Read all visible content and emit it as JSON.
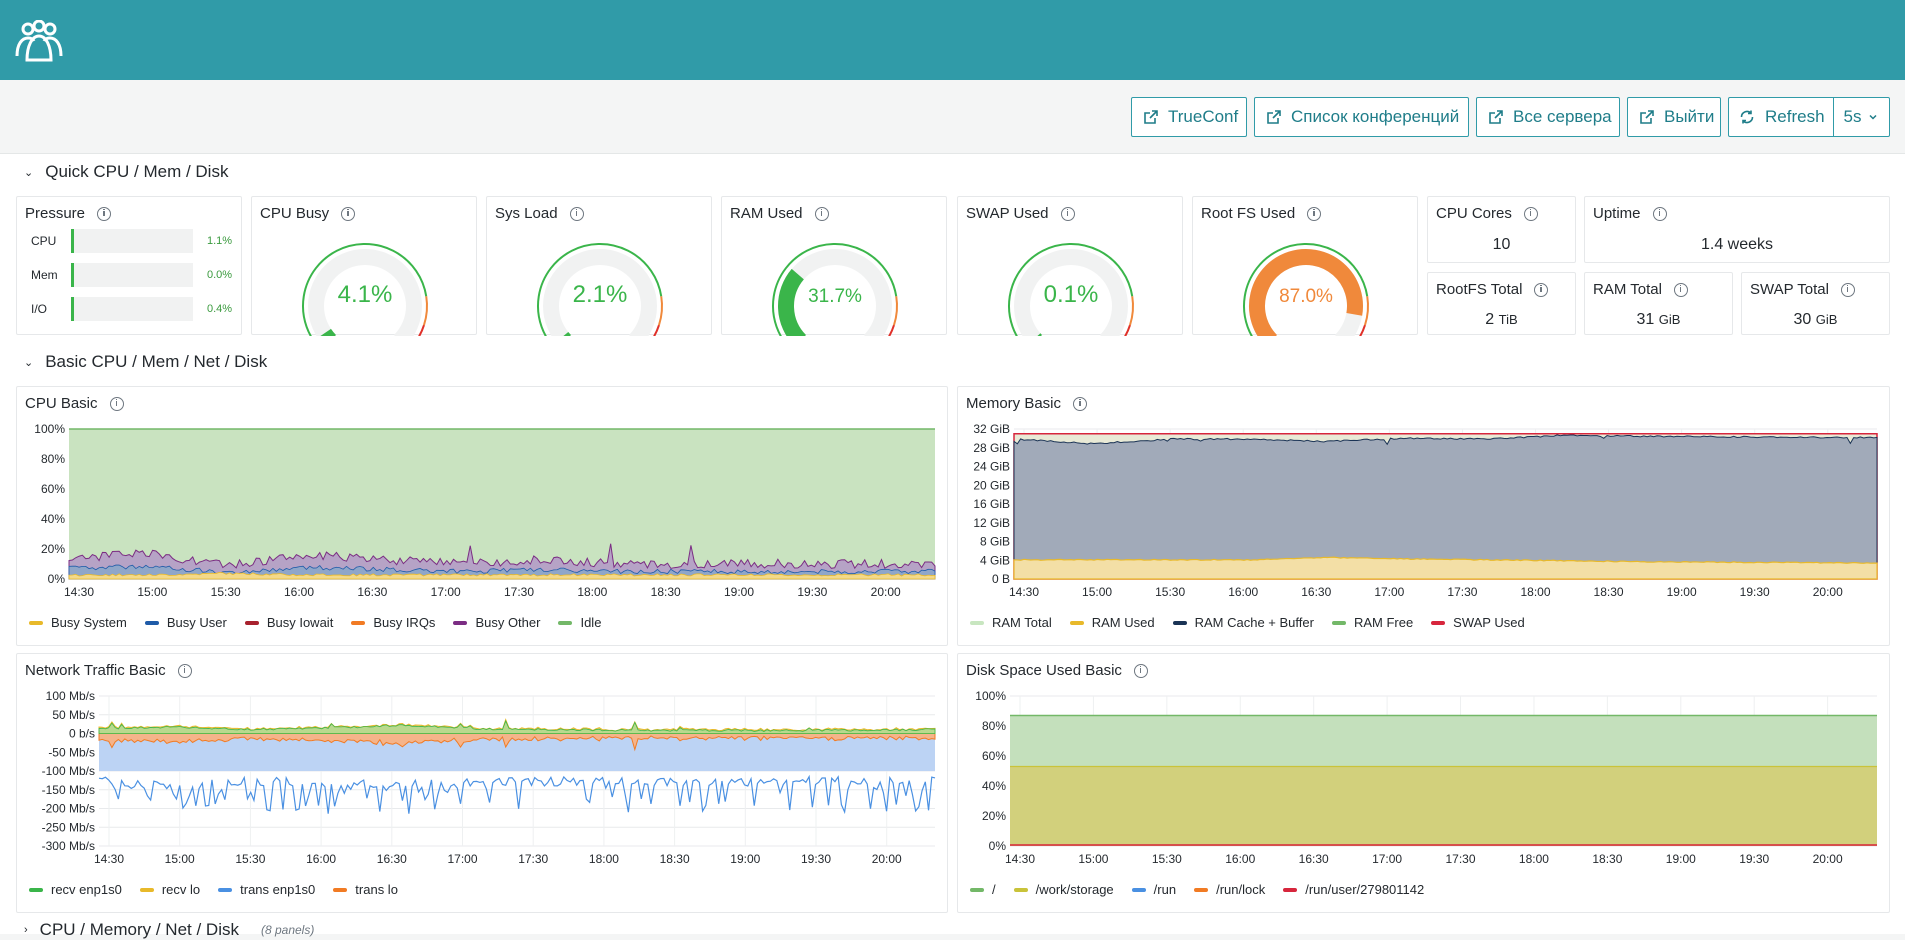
{
  "header": {
    "logo_icon": "users-group-icon"
  },
  "nav": {
    "buttons": [
      {
        "label": "TrueConf",
        "icon": "external-link-icon"
      },
      {
        "label": "Список конференций",
        "icon": "external-link-icon"
      },
      {
        "label": "Все сервера",
        "icon": "external-link-icon"
      },
      {
        "label": "Выйти",
        "icon": "external-link-icon"
      }
    ],
    "refresh_label": "Refresh",
    "refresh_interval": "5s"
  },
  "sections": {
    "quick": "Quick CPU / Mem / Disk",
    "basic": "Basic CPU / Mem / Net / Disk",
    "more": "CPU / Memory / Net / Disk",
    "more_count": "(8 panels)"
  },
  "pressure": {
    "title": "Pressure",
    "rows": [
      {
        "label": "CPU",
        "value": "1.1%",
        "fraction": 0.011
      },
      {
        "label": "Mem",
        "value": "0.0%",
        "fraction": 0.0
      },
      {
        "label": "I/O",
        "value": "0.4%",
        "fraction": 0.004
      }
    ]
  },
  "gauges": [
    {
      "title": "CPU Busy",
      "value": "4.1%",
      "percent": 4.1,
      "color": "#3ab54a"
    },
    {
      "title": "Sys Load",
      "value": "2.1%",
      "percent": 2.1,
      "color": "#3ab54a"
    },
    {
      "title": "RAM Used",
      "value": "31.7%",
      "percent": 31.7,
      "color": "#3ab54a"
    },
    {
      "title": "SWAP Used",
      "value": "0.1%",
      "percent": 0.1,
      "color": "#3ab54a"
    },
    {
      "title": "Root FS Used",
      "value": "87.0%",
      "percent": 87.0,
      "color": "#f0893b"
    }
  ],
  "stats": {
    "cpu_cores": {
      "title": "CPU Cores",
      "value": "10",
      "unit": ""
    },
    "uptime": {
      "title": "Uptime",
      "value": "1.4 weeks",
      "unit": ""
    },
    "rootfs_total": {
      "title": "RootFS Total",
      "value": "2",
      "unit": "TiB"
    },
    "ram_total": {
      "title": "RAM Total",
      "value": "31",
      "unit": "GiB"
    },
    "swap_total": {
      "title": "SWAP Total",
      "value": "30",
      "unit": "GiB"
    }
  },
  "chart_data": [
    {
      "type": "area",
      "title": "CPU Basic",
      "x": [
        "14:30",
        "15:00",
        "15:30",
        "16:00",
        "16:30",
        "17:00",
        "17:30",
        "18:00",
        "18:30",
        "19:00",
        "19:30",
        "20:00"
      ],
      "yticks": [
        "0%",
        "20%",
        "40%",
        "60%",
        "80%",
        "100%"
      ],
      "ylim": [
        0,
        100
      ],
      "series": [
        {
          "name": "Busy System",
          "color": "#e8b92a",
          "values": [
            2,
            2,
            3,
            2,
            2,
            2,
            2,
            2,
            2,
            2,
            2,
            2
          ]
        },
        {
          "name": "Busy User",
          "color": "#1f5ba8",
          "values": [
            8,
            10,
            4,
            9,
            7,
            5,
            7,
            5,
            5,
            5,
            5,
            5
          ]
        },
        {
          "name": "Busy Iowait",
          "color": "#a8222e",
          "values": [
            0,
            0,
            0,
            0,
            0,
            0,
            0,
            0,
            0,
            0,
            0,
            0
          ]
        },
        {
          "name": "Busy IRQs",
          "color": "#f17b24",
          "values": [
            0,
            0,
            0,
            0,
            0,
            0,
            0,
            0,
            0,
            0,
            0,
            0
          ]
        },
        {
          "name": "Busy Other",
          "color": "#7b2d83",
          "values": [
            3,
            4,
            2,
            4,
            3,
            2,
            3,
            2,
            2,
            2,
            2,
            2
          ]
        },
        {
          "name": "Idle",
          "color": "#73b868",
          "values": [
            87,
            84,
            91,
            85,
            88,
            91,
            88,
            91,
            91,
            91,
            91,
            91
          ]
        }
      ]
    },
    {
      "type": "area",
      "title": "Memory Basic",
      "x": [
        "14:30",
        "15:00",
        "15:30",
        "16:00",
        "16:30",
        "17:00",
        "17:30",
        "18:00",
        "18:30",
        "19:00",
        "19:30",
        "20:00"
      ],
      "yticks": [
        "0 B",
        "4 GiB",
        "8 GiB",
        "12 GiB",
        "16 GiB",
        "20 GiB",
        "24 GiB",
        "28 GiB",
        "32 GiB"
      ],
      "ylim": [
        0,
        32
      ],
      "series": [
        {
          "name": "RAM Total",
          "color": "#c8e6c0",
          "values": [
            31,
            31,
            31,
            31,
            31,
            31,
            31,
            31,
            31,
            31,
            31,
            31
          ]
        },
        {
          "name": "RAM Used",
          "color": "#e8b92a",
          "values": [
            4,
            4,
            4,
            4,
            4.5,
            4.2,
            4,
            3.8,
            3.6,
            3.5,
            3.4,
            3.3
          ]
        },
        {
          "name": "RAM Cache + Buffer",
          "color": "#1a3355",
          "values": [
            26,
            25,
            26,
            26,
            25,
            26,
            26,
            27,
            27,
            27,
            27,
            27
          ]
        },
        {
          "name": "RAM Free",
          "color": "#73b868",
          "values": [
            1,
            2,
            1,
            1,
            1.5,
            0.8,
            1,
            0.2,
            0.4,
            0.5,
            0.6,
            0.7
          ]
        },
        {
          "name": "SWAP Used",
          "color": "#d7263d",
          "values": [
            0,
            0,
            0,
            0,
            0,
            0,
            0,
            0,
            0,
            0,
            0,
            0
          ]
        }
      ]
    },
    {
      "type": "area",
      "title": "Network Traffic Basic",
      "x": [
        "14:30",
        "15:00",
        "15:30",
        "16:00",
        "16:30",
        "17:00",
        "17:30",
        "18:00",
        "18:30",
        "19:00",
        "19:30",
        "20:00"
      ],
      "yticks": [
        "-300 Mb/s",
        "-250 Mb/s",
        "-200 Mb/s",
        "-150 Mb/s",
        "-100 Mb/s",
        "-50 Mb/s",
        "0 b/s",
        "50 Mb/s",
        "100 Mb/s"
      ],
      "ylim": [
        -300,
        100
      ],
      "series": [
        {
          "name": "recv enp1s0",
          "color": "#3ab54a",
          "values": [
            10,
            15,
            8,
            12,
            20,
            10,
            8,
            6,
            6,
            5,
            6,
            8
          ]
        },
        {
          "name": "recv lo",
          "color": "#e8b92a",
          "values": [
            12,
            18,
            10,
            14,
            22,
            12,
            10,
            8,
            8,
            7,
            8,
            10
          ]
        },
        {
          "name": "trans enp1s0",
          "color": "#4a90e2",
          "values": [
            -140,
            -150,
            -140,
            -145,
            -150,
            -140,
            -140,
            -140,
            -140,
            -140,
            -140,
            -140
          ]
        },
        {
          "name": "trans lo",
          "color": "#f17b24",
          "values": [
            -12,
            -18,
            -10,
            -14,
            -22,
            -12,
            -10,
            -8,
            -8,
            -7,
            -8,
            -10
          ]
        }
      ]
    },
    {
      "type": "area",
      "title": "Disk Space Used Basic",
      "x": [
        "14:30",
        "15:00",
        "15:30",
        "16:00",
        "16:30",
        "17:00",
        "17:30",
        "18:00",
        "18:30",
        "19:00",
        "19:30",
        "20:00"
      ],
      "yticks": [
        "0%",
        "20%",
        "40%",
        "60%",
        "80%",
        "100%"
      ],
      "ylim": [
        0,
        100
      ],
      "series": [
        {
          "name": "/",
          "color": "#73b868",
          "values": [
            87,
            87,
            87,
            87,
            87,
            87,
            87,
            87,
            87,
            87,
            87,
            87
          ]
        },
        {
          "name": "/work/storage",
          "color": "#c9c33a",
          "values": [
            53,
            53,
            53,
            53,
            53,
            53,
            53,
            53,
            53,
            53,
            53,
            53
          ]
        },
        {
          "name": "/run",
          "color": "#4a90e2",
          "values": [
            0,
            0,
            0,
            0,
            0,
            0,
            0,
            0,
            0,
            0,
            0,
            0
          ]
        },
        {
          "name": "/run/lock",
          "color": "#f17b24",
          "values": [
            0,
            0,
            0,
            0,
            0,
            0,
            0,
            0,
            0,
            0,
            0,
            0
          ]
        },
        {
          "name": "/run/user/279801142",
          "color": "#d7263d",
          "values": [
            0.5,
            0.5,
            0.5,
            0.5,
            0.5,
            0.5,
            0.5,
            0.5,
            0.5,
            0.5,
            0.5,
            0.5
          ]
        }
      ]
    }
  ]
}
